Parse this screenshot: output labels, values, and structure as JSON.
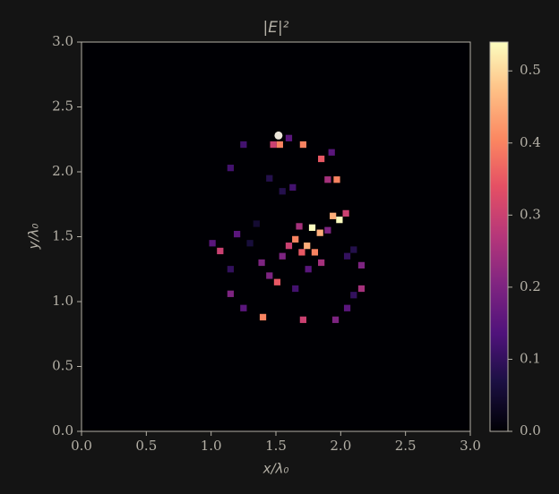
{
  "chart_data": {
    "type": "heatmap",
    "title": "|E|²",
    "xlabel": "x/λ₀",
    "ylabel": "y/λ₀",
    "xlim": [
      0,
      3
    ],
    "ylim": [
      0,
      3
    ],
    "xticks": [
      {
        "value": 0,
        "label": "0.0"
      },
      0.5,
      {
        "value": 1,
        "label": "1.0"
      },
      1.5,
      {
        "value": 2,
        "label": "2.0"
      },
      2.5,
      {
        "value": 3,
        "label": "3.0"
      }
    ],
    "yticks": [
      {
        "value": 0,
        "label": "0.0"
      },
      0.5,
      {
        "value": 1,
        "label": "1.0"
      },
      1.5,
      {
        "value": 2,
        "label": "2.0"
      },
      2.5,
      {
        "value": 3,
        "label": "3.0"
      }
    ],
    "colormap": "magma",
    "zlim": [
      0,
      0.54
    ],
    "zticks": [
      {
        "value": 0,
        "label": "0.0"
      },
      0.1,
      0.2,
      0.3,
      0.4,
      0.5
    ],
    "cell_size": 0.05,
    "cells": {
      "x": [
        1.53,
        1.71,
        1.48,
        1.6,
        1.25,
        1.15,
        1.85,
        1.93,
        1.97,
        1.9,
        1.63,
        1.94,
        1.99,
        2.04,
        1.78,
        1.84,
        1.68,
        1.9,
        1.65,
        1.74,
        1.8,
        1.7,
        1.6,
        1.55,
        1.85,
        1.51,
        1.45,
        1.39,
        1.2,
        1.07,
        1.01,
        1.15,
        1.15,
        1.25,
        1.4,
        1.71,
        1.96,
        2.05,
        2.1,
        2.16,
        2.16,
        2.05,
        1.65,
        1.45,
        1.55,
        2.1,
        1.75,
        1.35,
        1.3
      ],
      "y": [
        2.21,
        2.21,
        2.21,
        2.26,
        2.21,
        2.03,
        2.1,
        2.15,
        1.94,
        1.94,
        1.88,
        1.66,
        1.63,
        1.68,
        1.57,
        1.53,
        1.58,
        1.55,
        1.48,
        1.43,
        1.38,
        1.38,
        1.43,
        1.35,
        1.3,
        1.15,
        1.2,
        1.3,
        1.52,
        1.39,
        1.45,
        1.25,
        1.06,
        0.95,
        0.88,
        0.86,
        0.86,
        0.95,
        1.05,
        1.1,
        1.28,
        1.35,
        1.1,
        1.95,
        1.85,
        1.4,
        1.25,
        1.6,
        1.45
      ],
      "values": [
        0.4,
        0.4,
        0.3,
        0.15,
        0.12,
        0.12,
        0.35,
        0.15,
        0.4,
        0.25,
        0.12,
        0.45,
        0.54,
        0.3,
        0.54,
        0.45,
        0.25,
        0.2,
        0.4,
        0.45,
        0.4,
        0.35,
        0.3,
        0.2,
        0.25,
        0.35,
        0.2,
        0.2,
        0.15,
        0.3,
        0.15,
        0.1,
        0.2,
        0.15,
        0.4,
        0.3,
        0.2,
        0.15,
        0.1,
        0.25,
        0.2,
        0.1,
        0.12,
        0.08,
        0.08,
        0.08,
        0.15,
        0.05,
        0.06
      ]
    },
    "points": {
      "x": [
        1.52
      ],
      "y": [
        2.28
      ],
      "color": "#ece6da"
    }
  }
}
